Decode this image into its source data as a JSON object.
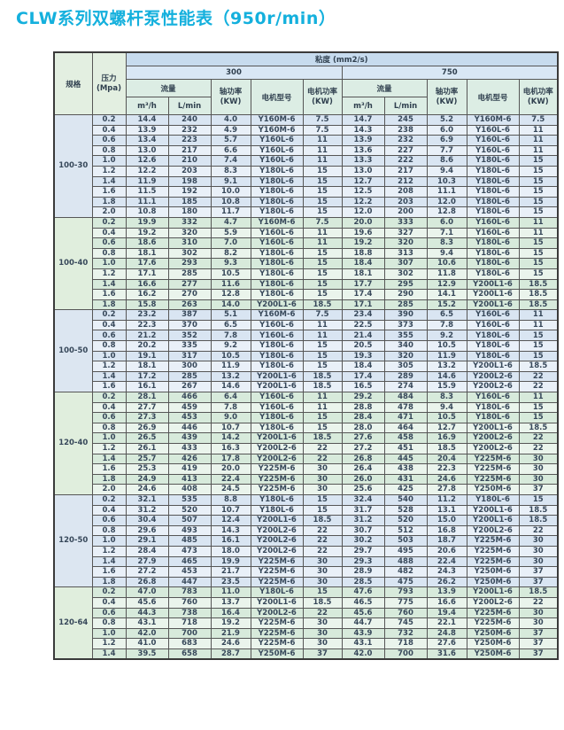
{
  "title": "CLW系列双螺杆泵性能表（950r/min）",
  "colors": {
    "title_accent": "#14b0dd",
    "header_viscosity_bg": "#c7dbee",
    "header_viscosity_value_bg": "#d9e7f5",
    "header_green_bg": "#dcede4",
    "corner_bg": "#e3efe1",
    "blue_row_dark": "#d9e5f2",
    "blue_row_light": "#e9f0f8",
    "green_row_dark": "#d7eadb",
    "green_row_light": "#eaf4ec",
    "border": "#565656"
  },
  "table": {
    "headers": {
      "spec": "规格",
      "pressure_l1": "压力",
      "pressure_l2": "(Mpa)",
      "viscosity": "粘度 (mm2/s)",
      "v300": "300",
      "v750": "750",
      "flow": "流量",
      "flow_m3h": "m³/h",
      "flow_lmin": "L/min",
      "shaft_l1": "轴功率",
      "shaft_l2": "(KW)",
      "motor_model": "电机型号",
      "motor_power_l1": "电机功率",
      "motor_power_l2": "(KW)"
    },
    "groups": [
      {
        "spec": "100-30",
        "theme": "blue",
        "rows": [
          {
            "p": "0.2",
            "v300": [
              "14.4",
              "240",
              "4.0",
              "Y160M-6",
              "7.5"
            ],
            "v750": [
              "14.7",
              "245",
              "5.2",
              "Y160M-6",
              "7.5"
            ]
          },
          {
            "p": "0.4",
            "v300": [
              "13.9",
              "232",
              "4.9",
              "Y160M-6",
              "7.5"
            ],
            "v750": [
              "14.3",
              "238",
              "6.0",
              "Y160L-6",
              "11"
            ]
          },
          {
            "p": "0.6",
            "v300": [
              "13.4",
              "223",
              "5.7",
              "Y160L-6",
              "11"
            ],
            "v750": [
              "13.9",
              "232",
              "6.9",
              "Y160L-6",
              "11"
            ]
          },
          {
            "p": "0.8",
            "v300": [
              "13.0",
              "217",
              "6.6",
              "Y160L-6",
              "11"
            ],
            "v750": [
              "13.6",
              "227",
              "7.7",
              "Y160L-6",
              "11"
            ]
          },
          {
            "p": "1.0",
            "v300": [
              "12.6",
              "210",
              "7.4",
              "Y160L-6",
              "11"
            ],
            "v750": [
              "13.3",
              "222",
              "8.6",
              "Y180L-6",
              "15"
            ]
          },
          {
            "p": "1.2",
            "v300": [
              "12.2",
              "203",
              "8.3",
              "Y180L-6",
              "15"
            ],
            "v750": [
              "13.0",
              "217",
              "9.4",
              "Y180L-6",
              "15"
            ]
          },
          {
            "p": "1.4",
            "v300": [
              "11.9",
              "198",
              "9.1",
              "Y180L-6",
              "15"
            ],
            "v750": [
              "12.7",
              "212",
              "10.3",
              "Y180L-6",
              "15"
            ]
          },
          {
            "p": "1.6",
            "v300": [
              "11.5",
              "192",
              "10.0",
              "Y180L-6",
              "15"
            ],
            "v750": [
              "12.5",
              "208",
              "11.1",
              "Y180L-6",
              "15"
            ]
          },
          {
            "p": "1.8",
            "v300": [
              "11.1",
              "185",
              "10.8",
              "Y180L-6",
              "15"
            ],
            "v750": [
              "12.2",
              "203",
              "12.0",
              "Y180L-6",
              "15"
            ]
          },
          {
            "p": "2.0",
            "v300": [
              "10.8",
              "180",
              "11.7",
              "Y180L-6",
              "15"
            ],
            "v750": [
              "12.0",
              "200",
              "12.8",
              "Y180L-6",
              "15"
            ]
          }
        ]
      },
      {
        "spec": "100-40",
        "theme": "green",
        "rows": [
          {
            "p": "0.2",
            "v300": [
              "19.9",
              "332",
              "4.7",
              "Y160M-6",
              "7.5"
            ],
            "v750": [
              "20.0",
              "333",
              "6.0",
              "Y160L-6",
              "11"
            ]
          },
          {
            "p": "0.4",
            "v300": [
              "19.2",
              "320",
              "5.9",
              "Y160L-6",
              "11"
            ],
            "v750": [
              "19.6",
              "327",
              "7.1",
              "Y160L-6",
              "11"
            ]
          },
          {
            "p": "0.6",
            "v300": [
              "18.6",
              "310",
              "7.0",
              "Y160L-6",
              "11"
            ],
            "v750": [
              "19.2",
              "320",
              "8.3",
              "Y180L-6",
              "15"
            ]
          },
          {
            "p": "0.8",
            "v300": [
              "18.1",
              "302",
              "8.2",
              "Y180L-6",
              "15"
            ],
            "v750": [
              "18.8",
              "313",
              "9.4",
              "Y180L-6",
              "15"
            ]
          },
          {
            "p": "1.0",
            "v300": [
              "17.6",
              "293",
              "9.3",
              "Y180L-6",
              "15"
            ],
            "v750": [
              "18.4",
              "307",
              "10.6",
              "Y180L-6",
              "15"
            ]
          },
          {
            "p": "1.2",
            "v300": [
              "17.1",
              "285",
              "10.5",
              "Y180L-6",
              "15"
            ],
            "v750": [
              "18.1",
              "302",
              "11.8",
              "Y180L-6",
              "15"
            ]
          },
          {
            "p": "1.4",
            "v300": [
              "16.6",
              "277",
              "11.6",
              "Y180L-6",
              "15"
            ],
            "v750": [
              "17.7",
              "295",
              "12.9",
              "Y200L1-6",
              "18.5"
            ]
          },
          {
            "p": "1.6",
            "v300": [
              "16.2",
              "270",
              "12.8",
              "Y180L-6",
              "15"
            ],
            "v750": [
              "17.4",
              "290",
              "14.1",
              "Y200L1-6",
              "18.5"
            ]
          },
          {
            "p": "1.8",
            "v300": [
              "15.8",
              "263",
              "14.0",
              "Y200L1-6",
              "18.5"
            ],
            "v750": [
              "17.1",
              "285",
              "15.2",
              "Y200L1-6",
              "18.5"
            ]
          }
        ]
      },
      {
        "spec": "100-50",
        "theme": "blue",
        "rows": [
          {
            "p": "0.2",
            "v300": [
              "23.2",
              "387",
              "5.1",
              "Y160M-6",
              "7.5"
            ],
            "v750": [
              "23.4",
              "390",
              "6.5",
              "Y160L-6",
              "11"
            ]
          },
          {
            "p": "0.4",
            "v300": [
              "22.3",
              "370",
              "6.5",
              "Y160L-6",
              "11"
            ],
            "v750": [
              "22.5",
              "373",
              "7.8",
              "Y160L-6",
              "11"
            ]
          },
          {
            "p": "0.6",
            "v300": [
              "21.2",
              "352",
              "7.8",
              "Y160L-6",
              "11"
            ],
            "v750": [
              "21.4",
              "355",
              "9.2",
              "Y180L-6",
              "15"
            ]
          },
          {
            "p": "0.8",
            "v300": [
              "20.2",
              "335",
              "9.2",
              "Y180L-6",
              "15"
            ],
            "v750": [
              "20.5",
              "340",
              "10.5",
              "Y180L-6",
              "15"
            ]
          },
          {
            "p": "1.0",
            "v300": [
              "19.1",
              "317",
              "10.5",
              "Y180L-6",
              "15"
            ],
            "v750": [
              "19.3",
              "320",
              "11.9",
              "Y180L-6",
              "15"
            ]
          },
          {
            "p": "1.2",
            "v300": [
              "18.1",
              "300",
              "11.9",
              "Y180L-6",
              "15"
            ],
            "v750": [
              "18.4",
              "305",
              "13.2",
              "Y200L1-6",
              "18.5"
            ]
          },
          {
            "p": "1.4",
            "v300": [
              "17.2",
              "285",
              "13.2",
              "Y200L1-6",
              "18.5"
            ],
            "v750": [
              "17.4",
              "289",
              "14.6",
              "Y200L2-6",
              "22"
            ]
          },
          {
            "p": "1.6",
            "v300": [
              "16.1",
              "267",
              "14.6",
              "Y200L1-6",
              "18.5"
            ],
            "v750": [
              "16.5",
              "274",
              "15.9",
              "Y200L2-6",
              "22"
            ]
          }
        ]
      },
      {
        "spec": "120-40",
        "theme": "green",
        "rows": [
          {
            "p": "0.2",
            "v300": [
              "28.1",
              "466",
              "6.4",
              "Y160L-6",
              "11"
            ],
            "v750": [
              "29.2",
              "484",
              "8.3",
              "Y160L-6",
              "11"
            ]
          },
          {
            "p": "0.4",
            "v300": [
              "27.7",
              "459",
              "7.8",
              "Y160L-6",
              "11"
            ],
            "v750": [
              "28.8",
              "478",
              "9.4",
              "Y180L-6",
              "15"
            ]
          },
          {
            "p": "0.6",
            "v300": [
              "27.3",
              "453",
              "9.0",
              "Y180L-6",
              "15"
            ],
            "v750": [
              "28.4",
              "471",
              "10.5",
              "Y180L-6",
              "15"
            ]
          },
          {
            "p": "0.8",
            "v300": [
              "26.9",
              "446",
              "10.7",
              "Y180L-6",
              "15"
            ],
            "v750": [
              "28.0",
              "464",
              "12.7",
              "Y200L1-6",
              "18.5"
            ]
          },
          {
            "p": "1.0",
            "v300": [
              "26.5",
              "439",
              "14.2",
              "Y200L1-6",
              "18.5"
            ],
            "v750": [
              "27.6",
              "458",
              "16.9",
              "Y200L2-6",
              "22"
            ]
          },
          {
            "p": "1.2",
            "v300": [
              "26.1",
              "433",
              "16.3",
              "Y200L2-6",
              "22"
            ],
            "v750": [
              "27.2",
              "451",
              "18.5",
              "Y200L2-6",
              "22"
            ]
          },
          {
            "p": "1.4",
            "v300": [
              "25.7",
              "426",
              "17.8",
              "Y200L2-6",
              "22"
            ],
            "v750": [
              "26.8",
              "445",
              "20.4",
              "Y225M-6",
              "30"
            ]
          },
          {
            "p": "1.6",
            "v300": [
              "25.3",
              "419",
              "20.0",
              "Y225M-6",
              "30"
            ],
            "v750": [
              "26.4",
              "438",
              "22.3",
              "Y225M-6",
              "30"
            ]
          },
          {
            "p": "1.8",
            "v300": [
              "24.9",
              "413",
              "22.4",
              "Y225M-6",
              "30"
            ],
            "v750": [
              "26.0",
              "431",
              "24.6",
              "Y225M-6",
              "30"
            ]
          },
          {
            "p": "2.0",
            "v300": [
              "24.6",
              "408",
              "24.5",
              "Y225M-6",
              "30"
            ],
            "v750": [
              "25.6",
              "425",
              "27.8",
              "Y250M-6",
              "37"
            ]
          }
        ]
      },
      {
        "spec": "120-50",
        "theme": "blue",
        "rows": [
          {
            "p": "0.2",
            "v300": [
              "32.1",
              "535",
              "8.8",
              "Y180L-6",
              "15"
            ],
            "v750": [
              "32.4",
              "540",
              "11.2",
              "Y180L-6",
              "15"
            ]
          },
          {
            "p": "0.4",
            "v300": [
              "31.2",
              "520",
              "10.7",
              "Y180L-6",
              "15"
            ],
            "v750": [
              "31.7",
              "528",
              "13.1",
              "Y200L1-6",
              "18.5"
            ]
          },
          {
            "p": "0.6",
            "v300": [
              "30.4",
              "507",
              "12.4",
              "Y200L1-6",
              "18.5"
            ],
            "v750": [
              "31.2",
              "520",
              "15.0",
              "Y200L1-6",
              "18.5"
            ]
          },
          {
            "p": "0.8",
            "v300": [
              "29.6",
              "493",
              "14.3",
              "Y200L2-6",
              "22"
            ],
            "v750": [
              "30.7",
              "512",
              "16.8",
              "Y200L2-6",
              "22"
            ]
          },
          {
            "p": "1.0",
            "v300": [
              "29.1",
              "485",
              "16.1",
              "Y200L2-6",
              "22"
            ],
            "v750": [
              "30.2",
              "503",
              "18.7",
              "Y225M-6",
              "30"
            ]
          },
          {
            "p": "1.2",
            "v300": [
              "28.4",
              "473",
              "18.0",
              "Y200L2-6",
              "22"
            ],
            "v750": [
              "29.7",
              "495",
              "20.6",
              "Y225M-6",
              "30"
            ]
          },
          {
            "p": "1.4",
            "v300": [
              "27.9",
              "465",
              "19.9",
              "Y225M-6",
              "30"
            ],
            "v750": [
              "29.3",
              "488",
              "22.4",
              "Y225M-6",
              "30"
            ]
          },
          {
            "p": "1.6",
            "v300": [
              "27.2",
              "453",
              "21.7",
              "Y225M-6",
              "30"
            ],
            "v750": [
              "28.9",
              "482",
              "24.3",
              "Y250M-6",
              "37"
            ]
          },
          {
            "p": "1.8",
            "v300": [
              "26.8",
              "447",
              "23.5",
              "Y225M-6",
              "30"
            ],
            "v750": [
              "28.5",
              "475",
              "26.2",
              "Y250M-6",
              "37"
            ]
          }
        ]
      },
      {
        "spec": "120-64",
        "theme": "green",
        "rows": [
          {
            "p": "0.2",
            "v300": [
              "47.0",
              "783",
              "11.0",
              "Y180L-6",
              "15"
            ],
            "v750": [
              "47.6",
              "793",
              "13.9",
              "Y200L1-6",
              "18.5"
            ]
          },
          {
            "p": "0.4",
            "v300": [
              "45.6",
              "760",
              "13.7",
              "Y200L1-6",
              "18.5"
            ],
            "v750": [
              "46.5",
              "775",
              "16.6",
              "Y200L2-6",
              "22"
            ]
          },
          {
            "p": "0.6",
            "v300": [
              "44.3",
              "738",
              "16.4",
              "Y200L2-6",
              "22"
            ],
            "v750": [
              "45.6",
              "760",
              "19.4",
              "Y225M-6",
              "30"
            ]
          },
          {
            "p": "0.8",
            "v300": [
              "43.1",
              "718",
              "19.2",
              "Y225M-6",
              "30"
            ],
            "v750": [
              "44.7",
              "745",
              "22.1",
              "Y225M-6",
              "30"
            ]
          },
          {
            "p": "1.0",
            "v300": [
              "42.0",
              "700",
              "21.9",
              "Y225M-6",
              "30"
            ],
            "v750": [
              "43.9",
              "732",
              "24.8",
              "Y250M-6",
              "37"
            ]
          },
          {
            "p": "1.2",
            "v300": [
              "41.0",
              "683",
              "24.6",
              "Y225M-6",
              "30"
            ],
            "v750": [
              "43.1",
              "718",
              "27.6",
              "Y250M-6",
              "37"
            ]
          },
          {
            "p": "1.4",
            "v300": [
              "39.5",
              "658",
              "28.7",
              "Y250M-6",
              "37"
            ],
            "v750": [
              "42.0",
              "700",
              "31.6",
              "Y250M-6",
              "37"
            ]
          }
        ]
      }
    ]
  }
}
